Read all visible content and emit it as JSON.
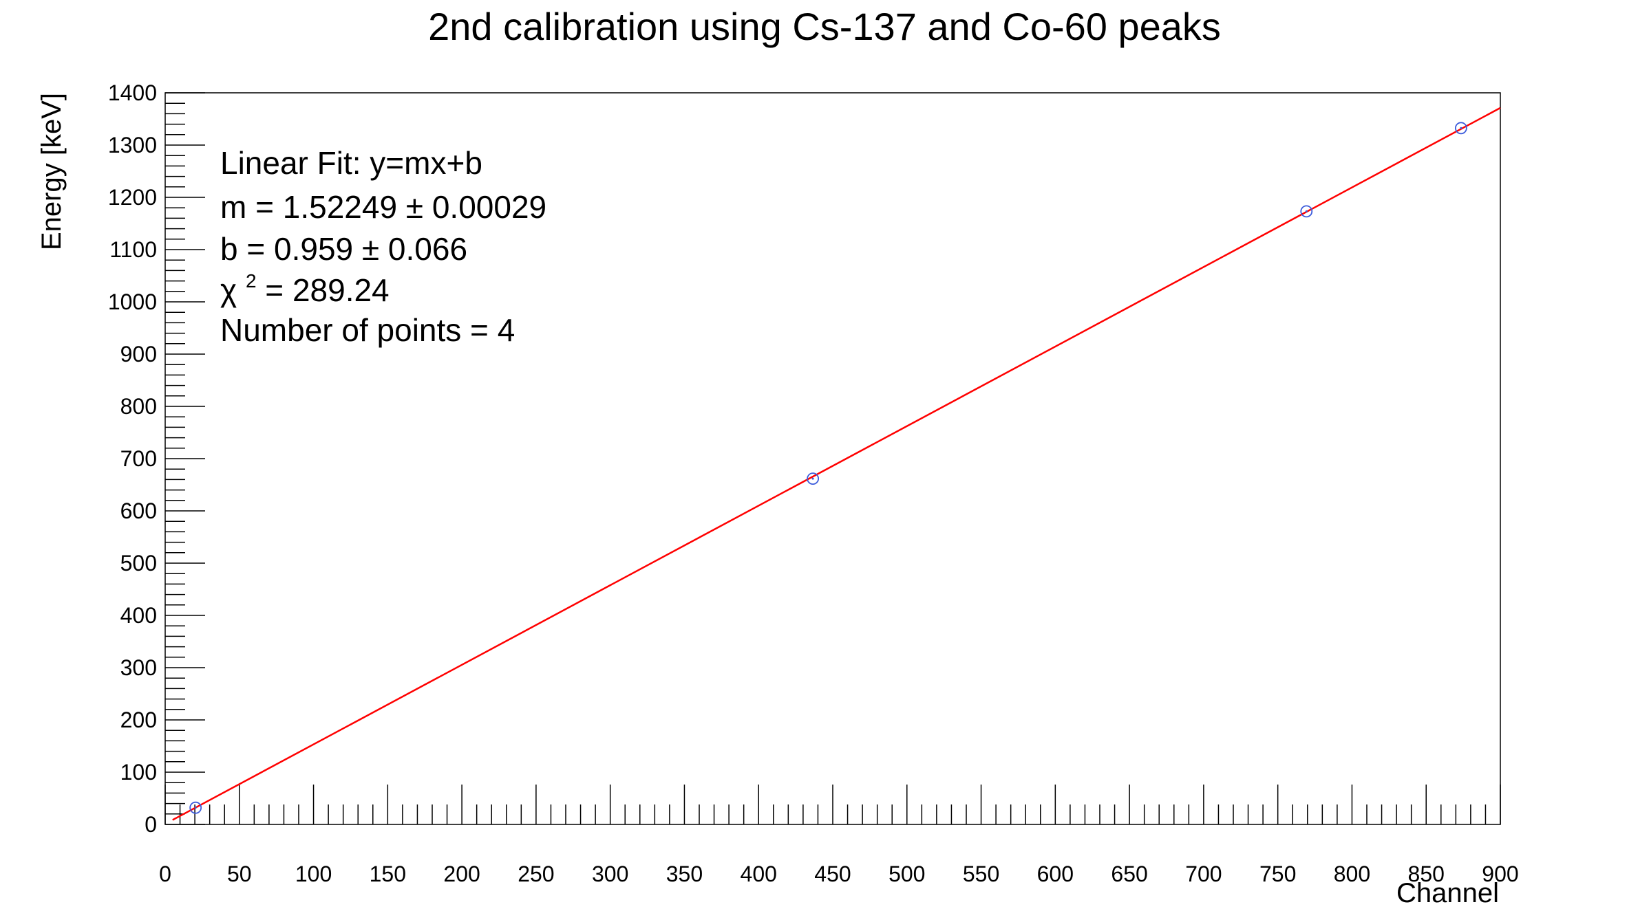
{
  "chart_data": {
    "type": "scatter",
    "title": "2nd calibration using Cs-137 and Co-60 peaks",
    "xlabel": "Channel",
    "ylabel": "Energy [keV]",
    "xlim": [
      0,
      900
    ],
    "ylim": [
      0,
      1400
    ],
    "x_ticks": [
      0,
      50,
      100,
      150,
      200,
      250,
      300,
      350,
      400,
      450,
      500,
      550,
      600,
      650,
      700,
      750,
      800,
      850,
      900
    ],
    "y_ticks": [
      0,
      100,
      200,
      300,
      400,
      500,
      600,
      700,
      800,
      900,
      1000,
      1100,
      1200,
      1300,
      1400
    ],
    "grid": false,
    "legend": "none",
    "marker_color": "#3b5bdb",
    "fit_color": "#ff0000",
    "series": [
      {
        "values": [
          {
            "x": 20.5,
            "y": 32.0
          },
          {
            "x": 436.6,
            "y": 661.7
          },
          {
            "x": 769.3,
            "y": 1173.2
          },
          {
            "x": 873.5,
            "y": 1332.5
          }
        ]
      }
    ],
    "fit": {
      "m": 1.52249,
      "b": 0.959,
      "x_range": [
        5,
        900
      ]
    },
    "annotations": {
      "line1": "Linear Fit: y=mx+b",
      "line2": "m = 1.52249 ± 0.00029",
      "line3": "b = 0.959 ± 0.066",
      "chi_symbol": "χ",
      "chi_exp": "2",
      "chi_value": " = 289.24",
      "line5": "Number of points = 4"
    }
  }
}
